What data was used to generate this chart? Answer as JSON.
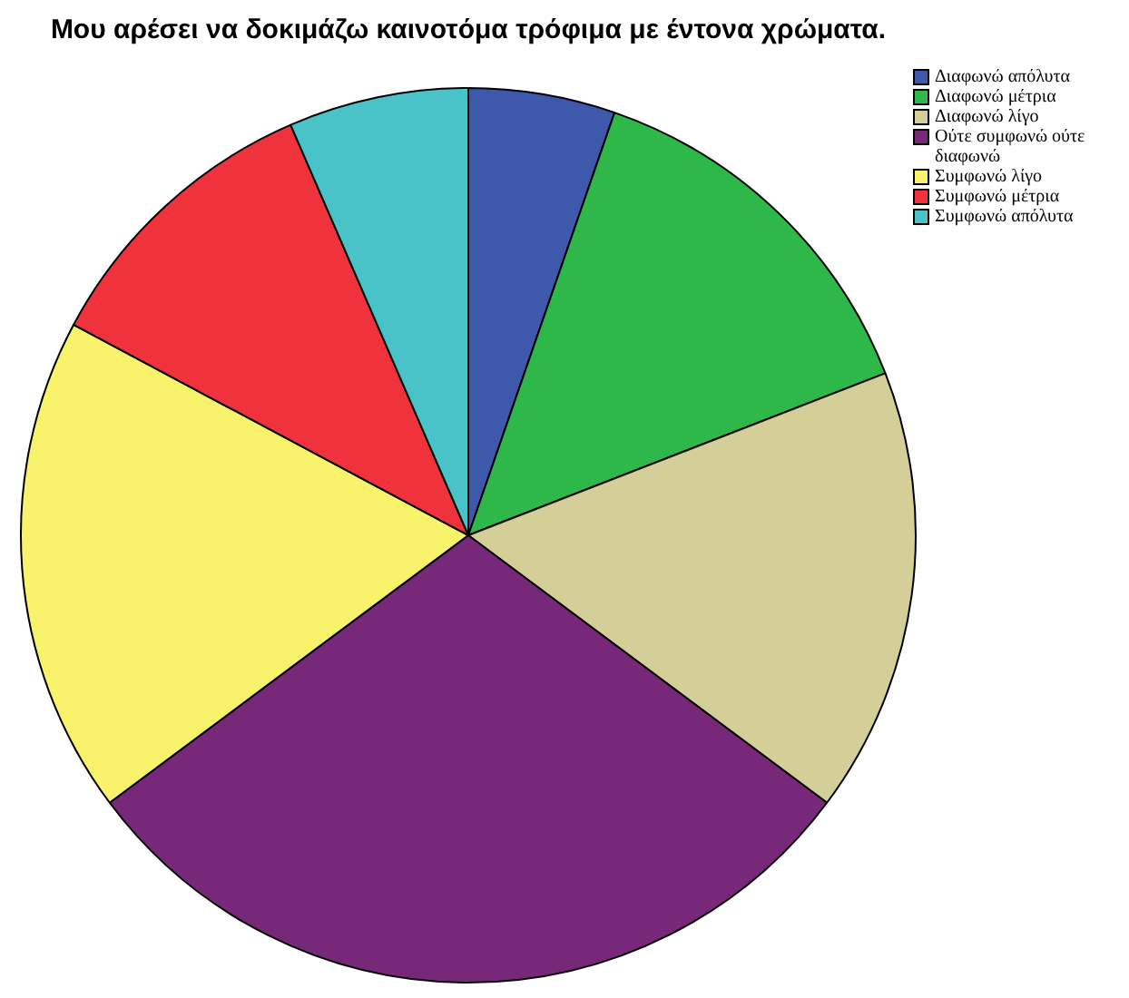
{
  "chart_data": {
    "type": "pie",
    "title": "Μου αρέσει να δοκιμάζω καινοτόμα τρόφιμα με έντονα χρώματα.",
    "categories": [
      "Διαφωνώ απόλυτα",
      "Διαφωνώ μέτρια",
      "Διαφωνώ λίγο",
      "Ούτε συμφωνώ ούτε διαφωνώ",
      "Συμφωνώ λίγο",
      "Συμφωνώ μέτρια",
      "Συμφωνώ απόλυτα"
    ],
    "values": [
      5.3,
      13.8,
      16.1,
      29.6,
      18,
      10.7,
      6.5
    ],
    "colors": [
      "#3e58ac",
      "#2fb84a",
      "#d4cf98",
      "#782878",
      "#f8f36b",
      "#ef323c",
      "#4ac3c8"
    ],
    "legend": "top right"
  }
}
